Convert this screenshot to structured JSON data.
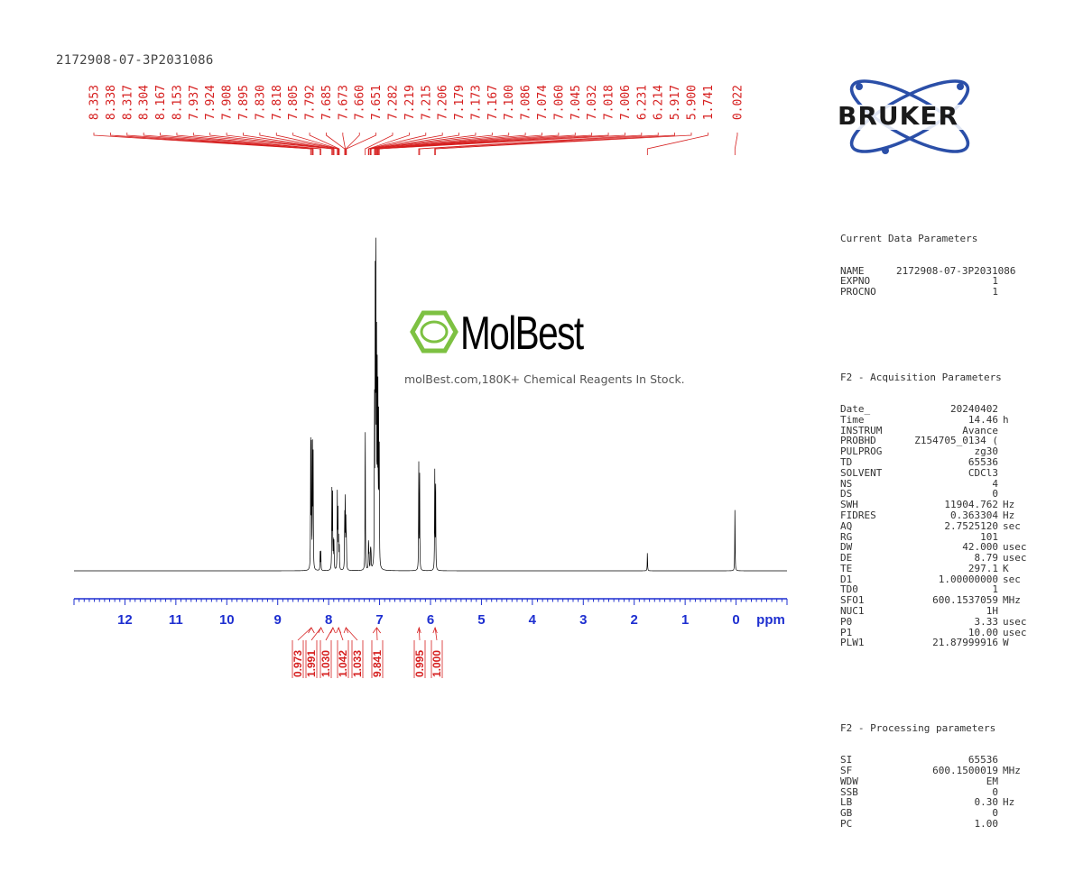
{
  "sample_id": "2172908-07-3P2031086",
  "logo": {
    "brand": "BRUKER",
    "accent": "#2b4fa8"
  },
  "watermark": {
    "name": "MolBest",
    "caption": "molBest.com,180K+ Chemical Reagents In Stock.",
    "accent": "#7dc142"
  },
  "colors": {
    "peak_labels": "#d62020",
    "axis": "#1e2fd0",
    "spectrum": "#000000"
  },
  "parameters": {
    "current_title": "Current Data Parameters",
    "current": [
      {
        "key": "NAME",
        "value": "2172908-07-3P2031086",
        "unit": ""
      },
      {
        "key": "EXPNO",
        "value": "1",
        "unit": ""
      },
      {
        "key": "PROCNO",
        "value": "1",
        "unit": ""
      }
    ],
    "acq_title": "F2 - Acquisition Parameters",
    "acq": [
      {
        "key": "Date_",
        "value": "20240402",
        "unit": ""
      },
      {
        "key": "Time",
        "value": "14.46",
        "unit": "h"
      },
      {
        "key": "INSTRUM",
        "value": "Avance",
        "unit": ""
      },
      {
        "key": "PROBHD",
        "value": "Z154705_0134 (",
        "unit": ""
      },
      {
        "key": "PULPROG",
        "value": "zg30",
        "unit": ""
      },
      {
        "key": "TD",
        "value": "65536",
        "unit": ""
      },
      {
        "key": "SOLVENT",
        "value": "CDCl3",
        "unit": ""
      },
      {
        "key": "NS",
        "value": "4",
        "unit": ""
      },
      {
        "key": "DS",
        "value": "0",
        "unit": ""
      },
      {
        "key": "SWH",
        "value": "11904.762",
        "unit": "Hz"
      },
      {
        "key": "FIDRES",
        "value": "0.363304",
        "unit": "Hz"
      },
      {
        "key": "AQ",
        "value": "2.7525120",
        "unit": "sec"
      },
      {
        "key": "RG",
        "value": "101",
        "unit": ""
      },
      {
        "key": "DW",
        "value": "42.000",
        "unit": "usec"
      },
      {
        "key": "DE",
        "value": "8.79",
        "unit": "usec"
      },
      {
        "key": "TE",
        "value": "297.1",
        "unit": "K"
      },
      {
        "key": "D1",
        "value": "1.00000000",
        "unit": "sec"
      },
      {
        "key": "TD0",
        "value": "1",
        "unit": ""
      },
      {
        "key": "SFO1",
        "value": "600.1537059",
        "unit": "MHz"
      },
      {
        "key": "NUC1",
        "value": "1H",
        "unit": ""
      },
      {
        "key": "P0",
        "value": "3.33",
        "unit": "usec"
      },
      {
        "key": "P1",
        "value": "10.00",
        "unit": "usec"
      },
      {
        "key": "PLW1",
        "value": "21.87999916",
        "unit": "W"
      }
    ],
    "proc_title": "F2 - Processing parameters",
    "proc": [
      {
        "key": "SI",
        "value": "65536",
        "unit": ""
      },
      {
        "key": "SF",
        "value": "600.1500019",
        "unit": "MHz"
      },
      {
        "key": "WDW",
        "value": "EM",
        "unit": ""
      },
      {
        "key": "SSB",
        "value": "0",
        "unit": ""
      },
      {
        "key": "LB",
        "value": "0.30",
        "unit": "Hz"
      },
      {
        "key": "GB",
        "value": "0",
        "unit": ""
      },
      {
        "key": "PC",
        "value": "1.00",
        "unit": ""
      }
    ]
  },
  "chart_data": {
    "type": "line",
    "xlabel": "ppm",
    "xlim": [
      13.0,
      -1.0
    ],
    "reversed_x": true,
    "ticks": [
      12,
      11,
      10,
      9,
      8,
      7,
      6,
      5,
      4,
      3,
      2,
      1,
      0
    ],
    "peak_labels": [
      "8.353",
      "8.338",
      "8.317",
      "8.304",
      "8.167",
      "8.153",
      "7.937",
      "7.924",
      "7.908",
      "7.895",
      "7.830",
      "7.818",
      "7.805",
      "7.792",
      "7.685",
      "7.673",
      "7.660",
      "7.651",
      "7.282",
      "7.219",
      "7.215",
      "7.206",
      "7.179",
      "7.173",
      "7.167",
      "7.100",
      "7.086",
      "7.074",
      "7.060",
      "7.045",
      "7.032",
      "7.018",
      "7.006",
      "6.231",
      "6.214",
      "5.917",
      "5.900",
      "1.741",
      "0.022"
    ],
    "peaks": [
      {
        "ppm": 8.353,
        "h": 0.34
      },
      {
        "ppm": 8.338,
        "h": 0.36
      },
      {
        "ppm": 8.317,
        "h": 0.32
      },
      {
        "ppm": 8.304,
        "h": 0.3
      },
      {
        "ppm": 8.167,
        "h": 0.05
      },
      {
        "ppm": 8.153,
        "h": 0.05
      },
      {
        "ppm": 7.937,
        "h": 0.22
      },
      {
        "ppm": 7.924,
        "h": 0.22
      },
      {
        "ppm": 7.908,
        "h": 0.08
      },
      {
        "ppm": 7.895,
        "h": 0.08
      },
      {
        "ppm": 7.83,
        "h": 0.2
      },
      {
        "ppm": 7.818,
        "h": 0.18
      },
      {
        "ppm": 7.805,
        "h": 0.1
      },
      {
        "ppm": 7.792,
        "h": 0.08
      },
      {
        "ppm": 7.685,
        "h": 0.16
      },
      {
        "ppm": 7.673,
        "h": 0.22
      },
      {
        "ppm": 7.66,
        "h": 0.14
      },
      {
        "ppm": 7.651,
        "h": 0.08
      },
      {
        "ppm": 7.282,
        "h": 0.45
      },
      {
        "ppm": 7.219,
        "h": 0.05
      },
      {
        "ppm": 7.215,
        "h": 0.05
      },
      {
        "ppm": 7.206,
        "h": 0.04
      },
      {
        "ppm": 7.179,
        "h": 0.04
      },
      {
        "ppm": 7.173,
        "h": 0.04
      },
      {
        "ppm": 7.167,
        "h": 0.04
      },
      {
        "ppm": 7.1,
        "h": 0.46
      },
      {
        "ppm": 7.086,
        "h": 0.72
      },
      {
        "ppm": 7.074,
        "h": 1.0
      },
      {
        "ppm": 7.06,
        "h": 0.62
      },
      {
        "ppm": 7.045,
        "h": 0.5
      },
      {
        "ppm": 7.032,
        "h": 0.44
      },
      {
        "ppm": 7.018,
        "h": 0.4
      },
      {
        "ppm": 7.006,
        "h": 0.3
      },
      {
        "ppm": 6.231,
        "h": 0.29
      },
      {
        "ppm": 6.214,
        "h": 0.29
      },
      {
        "ppm": 5.917,
        "h": 0.29
      },
      {
        "ppm": 5.9,
        "h": 0.29
      },
      {
        "ppm": 1.741,
        "h": 0.055
      },
      {
        "ppm": 0.022,
        "h": 0.19
      }
    ],
    "integrals": [
      {
        "from": 8.4,
        "to": 8.28,
        "value": "0.973"
      },
      {
        "from": 8.2,
        "to": 8.1,
        "value": "1.991"
      },
      {
        "from": 7.96,
        "to": 7.87,
        "value": "1.030"
      },
      {
        "from": 7.85,
        "to": 7.76,
        "value": "1.042"
      },
      {
        "from": 7.7,
        "to": 7.62,
        "value": "1.033"
      },
      {
        "from": 7.13,
        "to": 6.98,
        "value": "9.841"
      },
      {
        "from": 6.26,
        "to": 6.19,
        "value": "0.995"
      },
      {
        "from": 5.95,
        "to": 5.87,
        "value": "1.000"
      }
    ]
  }
}
